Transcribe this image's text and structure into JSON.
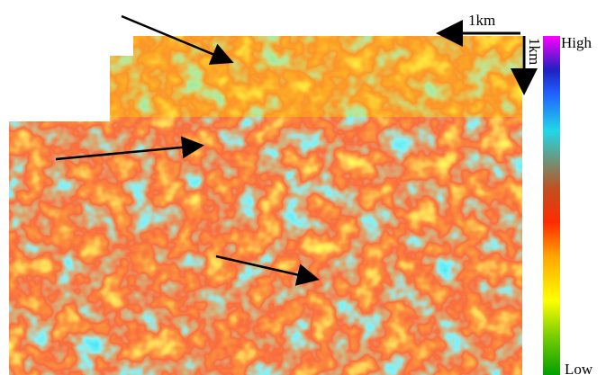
{
  "scale": {
    "horizontal_label": "1km",
    "vertical_label": "1km"
  },
  "legend": {
    "high_label": "High",
    "low_label": "Low"
  }
}
